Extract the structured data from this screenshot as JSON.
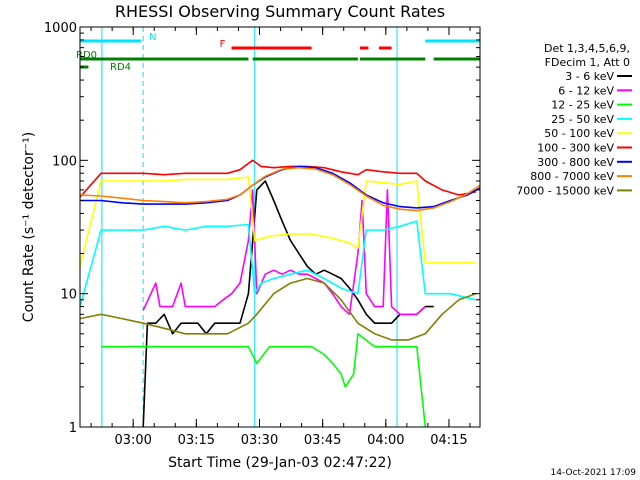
{
  "chart_data": {
    "type": "line",
    "title": "RHESSI Observing Summary Count Rates",
    "xlabel": "Start Time (29-Jan-03 02:47:22)",
    "ylabel": "Count Rate (s⁻¹ detector⁻¹)",
    "yscale": "log",
    "ylim": [
      1,
      1000
    ],
    "xlim_minutes_after_start": [
      0,
      95
    ],
    "x_ticks": [
      {
        "label": "03:00",
        "minute": 12.63
      },
      {
        "label": "03:15",
        "minute": 27.63
      },
      {
        "label": "03:30",
        "minute": 42.63
      },
      {
        "label": "03:45",
        "minute": 57.63
      },
      {
        "label": "04:00",
        "minute": 72.63
      },
      {
        "label": "04:15",
        "minute": 87.63
      }
    ],
    "y_ticks": [
      "1",
      "10",
      "100",
      "1000"
    ],
    "grid": false,
    "footer": "14-Oct-2021 17:09",
    "legend_header": [
      "Det 1,3,4,5,6,9,",
      "FDecim 1, Att 0"
    ],
    "flags": [
      {
        "label": "N",
        "color": "#00e5ff",
        "segments": [
          [
            0,
            14.5
          ],
          [
            82,
            95
          ]
        ]
      },
      {
        "label": "F",
        "color": "#ff0000",
        "segments": [
          [
            36,
            55
          ],
          [
            66.5,
            68.5
          ],
          [
            71,
            74
          ]
        ]
      },
      {
        "label": "RD0",
        "color": "#008000",
        "segments": [
          [
            0,
            40
          ],
          [
            41,
            66
          ],
          [
            66.5,
            82
          ],
          [
            84,
            95
          ]
        ]
      },
      {
        "label": "RD4",
        "color": "#008000",
        "segments": [
          [
            0,
            2
          ]
        ]
      }
    ],
    "markers": {
      "cyan_solid_lines": [
        5.2,
        41.5,
        75.3
      ],
      "cyan_dashed_lines": [
        15,
        95
      ]
    },
    "series": [
      {
        "name": "3 - 6 keV",
        "color": "#000000",
        "points": [
          [
            15,
            1
          ],
          [
            16,
            6
          ],
          [
            18,
            6
          ],
          [
            20,
            7
          ],
          [
            22,
            5
          ],
          [
            24,
            6
          ],
          [
            26,
            6
          ],
          [
            28,
            6
          ],
          [
            30,
            5
          ],
          [
            32,
            6
          ],
          [
            34,
            6
          ],
          [
            36,
            6
          ],
          [
            38,
            6
          ],
          [
            40,
            10
          ],
          [
            42,
            60
          ],
          [
            44,
            70
          ],
          [
            46,
            50
          ],
          [
            48,
            35
          ],
          [
            50,
            25
          ],
          [
            52,
            20
          ],
          [
            54,
            16
          ],
          [
            56,
            14
          ],
          [
            58,
            15
          ],
          [
            60,
            14
          ],
          [
            62,
            13
          ],
          [
            64,
            11
          ],
          [
            66,
            9
          ],
          [
            68,
            7
          ],
          [
            70,
            6
          ],
          [
            72,
            6
          ],
          [
            74,
            6
          ],
          [
            76,
            7
          ],
          [
            78,
            7
          ],
          [
            80,
            7
          ],
          [
            82,
            8
          ],
          [
            84,
            8
          ]
        ]
      },
      {
        "name": "6 - 12 keV",
        "color": "#ff00ff",
        "points": [
          [
            15,
            7.5
          ],
          [
            18,
            12
          ],
          [
            19,
            8
          ],
          [
            22,
            8
          ],
          [
            24,
            12
          ],
          [
            25,
            8
          ],
          [
            28,
            8
          ],
          [
            30,
            8
          ],
          [
            32,
            8
          ],
          [
            34,
            9
          ],
          [
            36,
            10
          ],
          [
            38,
            12
          ],
          [
            40,
            25
          ],
          [
            41,
            60
          ],
          [
            42,
            10
          ],
          [
            44,
            14
          ],
          [
            46,
            15
          ],
          [
            48,
            14
          ],
          [
            50,
            15
          ],
          [
            52,
            14
          ],
          [
            54,
            14
          ],
          [
            56,
            13
          ],
          [
            58,
            12
          ],
          [
            60,
            10
          ],
          [
            62,
            8
          ],
          [
            64,
            7
          ],
          [
            66,
            20
          ],
          [
            67,
            50
          ],
          [
            68,
            10
          ],
          [
            70,
            8
          ],
          [
            72,
            8
          ],
          [
            73,
            60
          ],
          [
            74,
            8
          ],
          [
            76,
            7
          ],
          [
            78,
            7
          ],
          [
            80,
            7
          ],
          [
            82,
            8
          ]
        ]
      },
      {
        "name": "12 - 25 keV",
        "color": "#00ff00",
        "points": [
          [
            5,
            4
          ],
          [
            10,
            4
          ],
          [
            15,
            4
          ],
          [
            20,
            4
          ],
          [
            25,
            4
          ],
          [
            30,
            4
          ],
          [
            35,
            4
          ],
          [
            40,
            4
          ],
          [
            42,
            3
          ],
          [
            45,
            4
          ],
          [
            50,
            4
          ],
          [
            55,
            4
          ],
          [
            58,
            3.5
          ],
          [
            60,
            3
          ],
          [
            62,
            2.5
          ],
          [
            63,
            2
          ],
          [
            65,
            2.5
          ],
          [
            66,
            5
          ],
          [
            70,
            4
          ],
          [
            75,
            4
          ],
          [
            80,
            4
          ],
          [
            82,
            1
          ]
        ]
      },
      {
        "name": "25 - 50 keV",
        "color": "#00ffff",
        "points": [
          [
            0,
            8
          ],
          [
            5,
            30
          ],
          [
            10,
            30
          ],
          [
            15,
            30
          ],
          [
            20,
            32
          ],
          [
            25,
            30
          ],
          [
            30,
            32
          ],
          [
            35,
            32
          ],
          [
            40,
            33
          ],
          [
            41.5,
            10
          ],
          [
            43,
            12
          ],
          [
            46,
            13
          ],
          [
            50,
            14
          ],
          [
            54,
            15
          ],
          [
            58,
            13
          ],
          [
            62,
            11
          ],
          [
            66,
            10
          ],
          [
            68,
            30
          ],
          [
            72,
            30
          ],
          [
            76,
            32
          ],
          [
            80,
            35
          ],
          [
            82,
            10
          ],
          [
            88,
            10
          ],
          [
            94,
            9
          ]
        ]
      },
      {
        "name": "50 - 100 keV",
        "color": "#ffff00",
        "points": [
          [
            0,
            16
          ],
          [
            5,
            70
          ],
          [
            10,
            70
          ],
          [
            15,
            70
          ],
          [
            20,
            70
          ],
          [
            25,
            72
          ],
          [
            30,
            72
          ],
          [
            35,
            72
          ],
          [
            40,
            75
          ],
          [
            41.5,
            25
          ],
          [
            45,
            27
          ],
          [
            50,
            28
          ],
          [
            55,
            28
          ],
          [
            60,
            26
          ],
          [
            64,
            24
          ],
          [
            66,
            22
          ],
          [
            68,
            70
          ],
          [
            72,
            68
          ],
          [
            76,
            66
          ],
          [
            80,
            70
          ],
          [
            82,
            17
          ],
          [
            88,
            17
          ],
          [
            94,
            17
          ]
        ]
      },
      {
        "name": "100 - 300 keV",
        "color": "#ff0000",
        "points": [
          [
            0,
            53
          ],
          [
            5,
            80
          ],
          [
            10,
            80
          ],
          [
            15,
            80
          ],
          [
            20,
            78
          ],
          [
            25,
            80
          ],
          [
            30,
            80
          ],
          [
            35,
            80
          ],
          [
            38,
            85
          ],
          [
            41,
            100
          ],
          [
            43,
            90
          ],
          [
            46,
            88
          ],
          [
            50,
            90
          ],
          [
            54,
            90
          ],
          [
            58,
            88
          ],
          [
            62,
            82
          ],
          [
            66,
            78
          ],
          [
            68,
            85
          ],
          [
            72,
            82
          ],
          [
            76,
            80
          ],
          [
            80,
            80
          ],
          [
            82,
            70
          ],
          [
            86,
            60
          ],
          [
            90,
            55
          ],
          [
            94,
            58
          ]
        ]
      },
      {
        "name": "300 - 800 keV",
        "color": "#0000ff",
        "points": [
          [
            0,
            50
          ],
          [
            5,
            50
          ],
          [
            10,
            48
          ],
          [
            15,
            47
          ],
          [
            20,
            47
          ],
          [
            25,
            47
          ],
          [
            30,
            48
          ],
          [
            35,
            50
          ],
          [
            38,
            55
          ],
          [
            41,
            65
          ],
          [
            44,
            75
          ],
          [
            48,
            85
          ],
          [
            52,
            90
          ],
          [
            56,
            88
          ],
          [
            60,
            80
          ],
          [
            64,
            68
          ],
          [
            68,
            55
          ],
          [
            72,
            48
          ],
          [
            76,
            45
          ],
          [
            80,
            44
          ],
          [
            84,
            45
          ],
          [
            88,
            50
          ],
          [
            92,
            55
          ],
          [
            95,
            62
          ]
        ]
      },
      {
        "name": "800 - 7000 keV",
        "color": "#ff8000",
        "points": [
          [
            0,
            55
          ],
          [
            5,
            54
          ],
          [
            10,
            52
          ],
          [
            15,
            50
          ],
          [
            20,
            49
          ],
          [
            25,
            48
          ],
          [
            30,
            49
          ],
          [
            35,
            51
          ],
          [
            38,
            55
          ],
          [
            41,
            65
          ],
          [
            44,
            76
          ],
          [
            48,
            86
          ],
          [
            52,
            88
          ],
          [
            56,
            86
          ],
          [
            60,
            78
          ],
          [
            64,
            66
          ],
          [
            68,
            54
          ],
          [
            72,
            46
          ],
          [
            76,
            43
          ],
          [
            80,
            42
          ],
          [
            84,
            44
          ],
          [
            88,
            49
          ],
          [
            92,
            56
          ],
          [
            95,
            65
          ]
        ]
      },
      {
        "name": "7000 - 15000 keV",
        "color": "#808000",
        "points": [
          [
            0,
            6.5
          ],
          [
            5,
            7
          ],
          [
            10,
            6.5
          ],
          [
            15,
            6
          ],
          [
            20,
            5.5
          ],
          [
            25,
            5
          ],
          [
            30,
            5
          ],
          [
            35,
            5
          ],
          [
            40,
            6
          ],
          [
            42,
            7
          ],
          [
            46,
            10
          ],
          [
            50,
            12
          ],
          [
            54,
            13
          ],
          [
            58,
            12
          ],
          [
            62,
            9
          ],
          [
            66,
            6
          ],
          [
            70,
            5
          ],
          [
            74,
            4.5
          ],
          [
            78,
            4.5
          ],
          [
            82,
            5
          ],
          [
            86,
            7
          ],
          [
            90,
            9
          ],
          [
            94,
            10
          ]
        ]
      }
    ]
  }
}
